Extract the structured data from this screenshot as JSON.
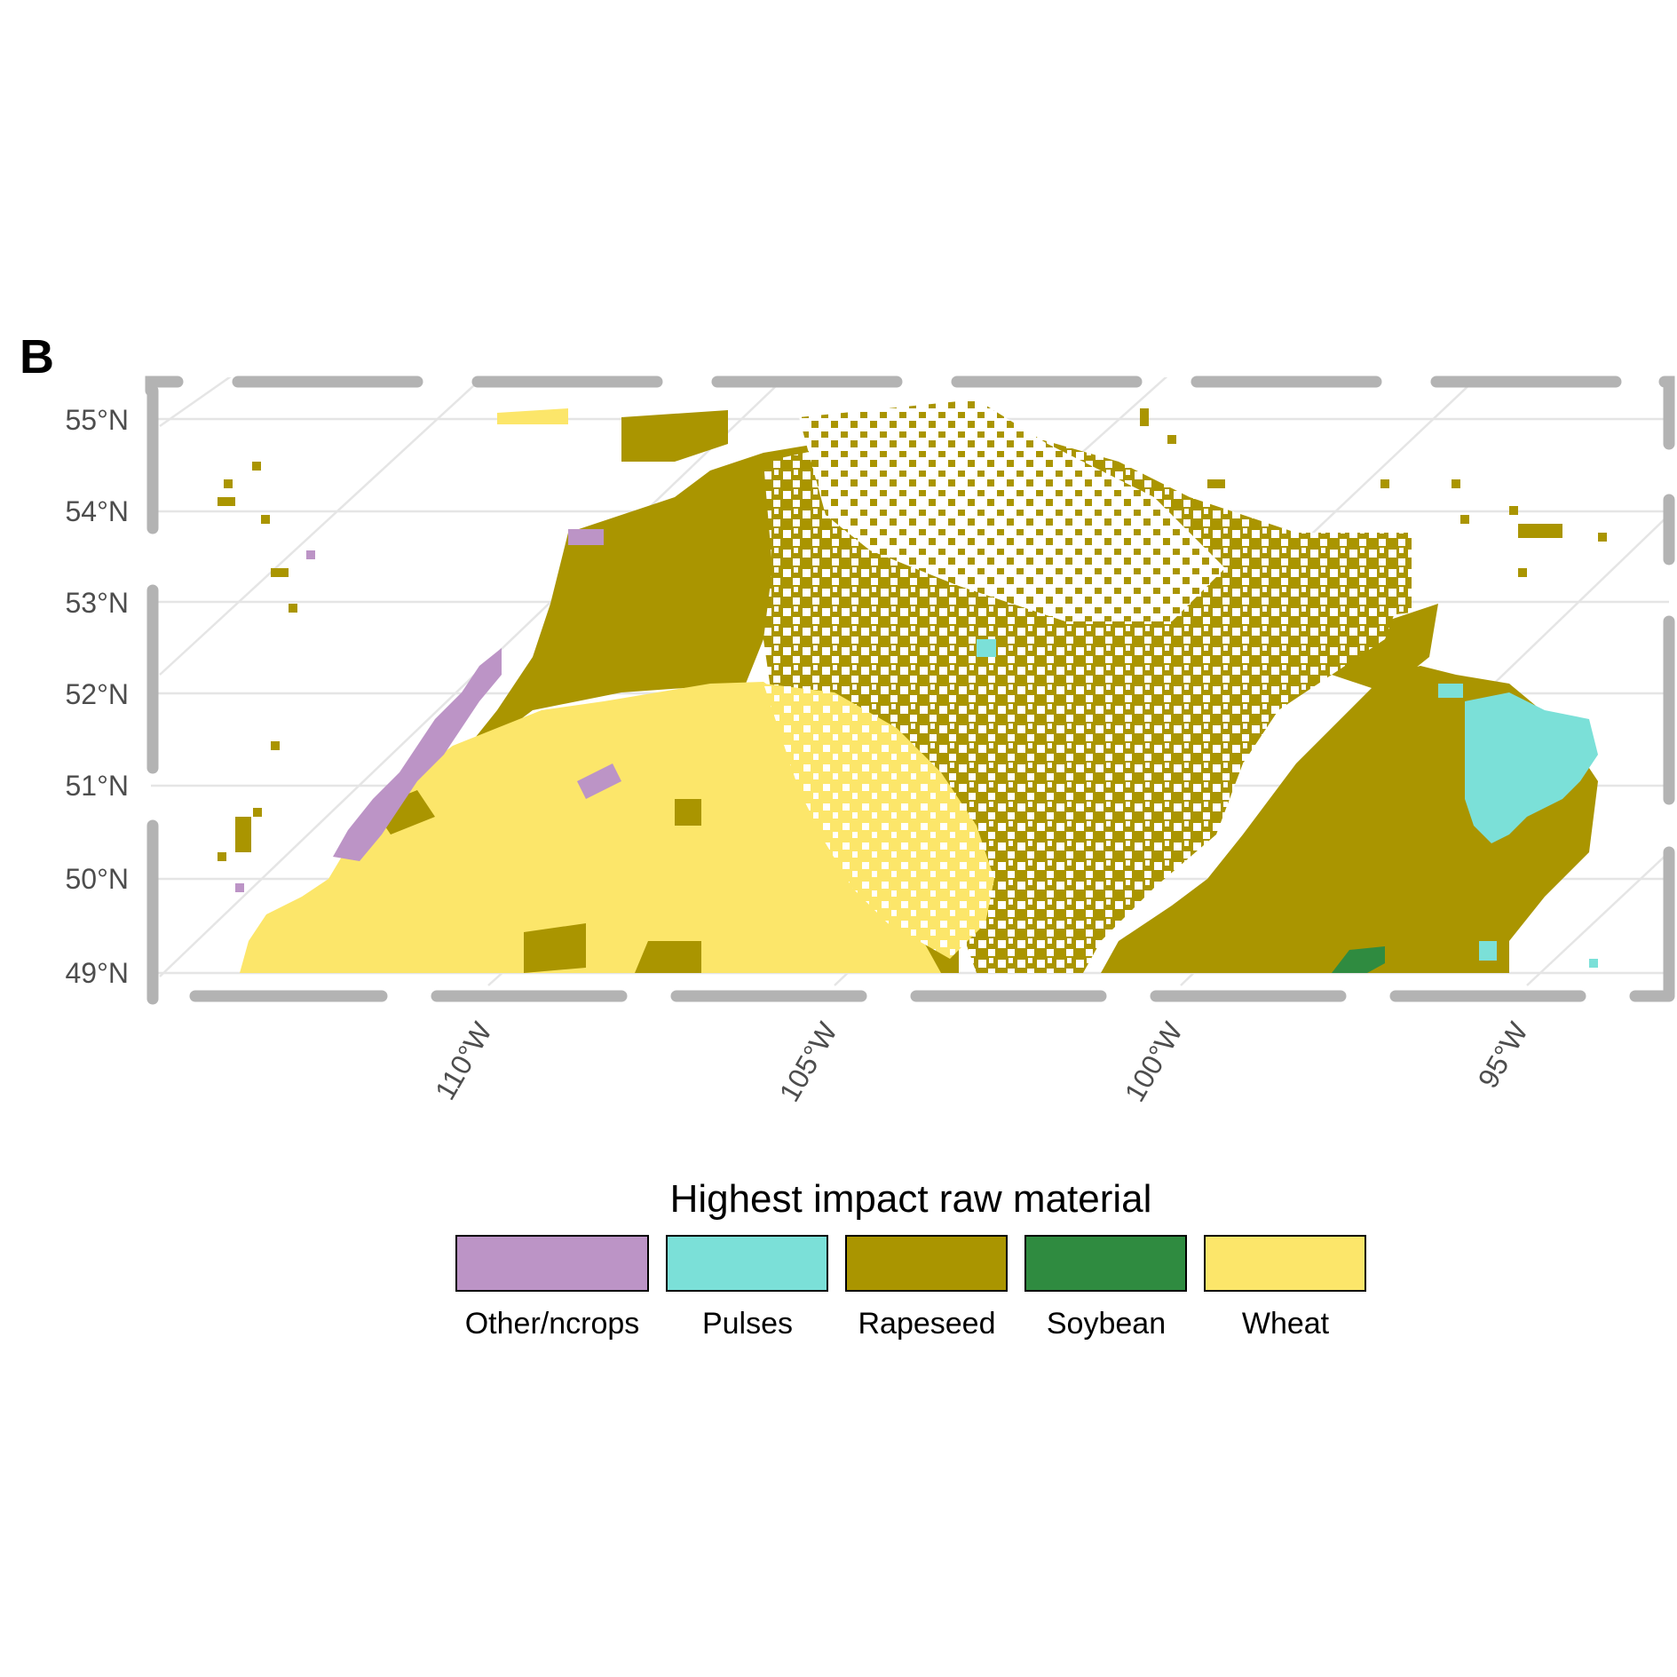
{
  "panel_label": "B",
  "chart_data": {
    "type": "heatmap",
    "lat_ticks": [
      "55°N",
      "54°N",
      "53°N",
      "52°N",
      "51°N",
      "50°N",
      "49°N"
    ],
    "lon_ticks": [
      "110°W",
      "105°W",
      "100°W",
      "95°W"
    ],
    "lat_range": [
      49,
      55
    ],
    "lon_range": [
      -115,
      -93
    ],
    "grid": true,
    "legend_placement": "bottom",
    "legend_title": "Highest impact raw material",
    "categories": [
      {
        "name": "Other/ncrops",
        "color": "#BC94C6"
      },
      {
        "name": "Pulses",
        "color": "#7BE0D8"
      },
      {
        "name": "Rapeseed",
        "color": "#AA9500"
      },
      {
        "name": "Soybean",
        "color": "#2F8B40"
      },
      {
        "name": "Wheat",
        "color": "#FCE66A"
      }
    ]
  }
}
